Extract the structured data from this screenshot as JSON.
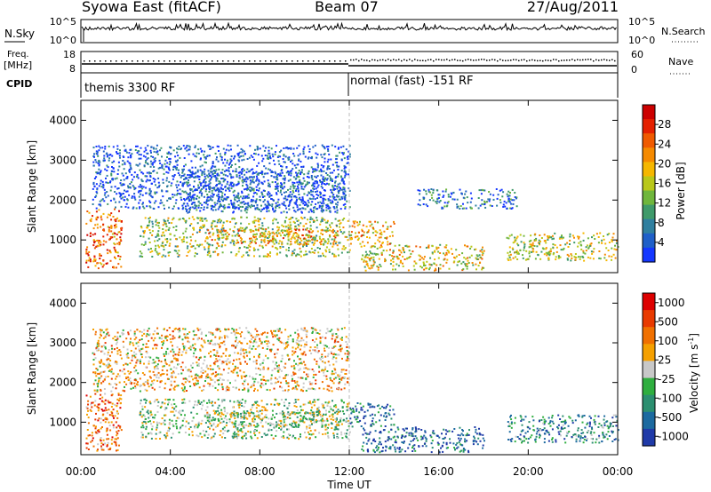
{
  "header": {
    "title": "Syowa East (fitACF)",
    "beam": "Beam 07",
    "date": "27/Aug/2011"
  },
  "summary_panels": {
    "nsky_label": "N.Sky",
    "nsky_ticks": [
      "10^5",
      "10^0"
    ],
    "nsearch_label": "N.Search",
    "nsearch_ticks": [
      "10^5",
      "10^0"
    ],
    "freq_label": "Freq.",
    "freq_unit": "[MHz]",
    "freq_ticks": [
      "18",
      "8"
    ],
    "nave_label": "Nave",
    "nave_ticks": [
      "60",
      "0"
    ],
    "cpid_label": "CPID",
    "cpid_segments": [
      {
        "label": "themis 3300 RF",
        "start_hour": 0,
        "end_hour": 12
      },
      {
        "label": "normal (fast) -151 RF",
        "start_hour": 12,
        "end_hour": 24
      }
    ]
  },
  "chart_data": [
    {
      "type": "heatmap",
      "name": "power",
      "ylabel": "Slant Range [km]",
      "yticks": [
        "1000",
        "2000",
        "3000",
        "4000"
      ],
      "xlim": [
        0,
        24
      ],
      "ylim": [
        180,
        4500
      ],
      "colorbar_label": "Power [dB]",
      "colorbar_ticks": [
        "4",
        "8",
        "12",
        "16",
        "20",
        "24",
        "28"
      ],
      "colorbar_colors": [
        "#1437ff",
        "#1f5fc8",
        "#2f7f9f",
        "#3f9a6a",
        "#6fb63c",
        "#b9c81a",
        "#f5b700",
        "#f58a00",
        "#ef5a00",
        "#e42000",
        "#cc0000"
      ],
      "scatter_regions": [
        {
          "t0": 0.2,
          "t1": 1.8,
          "r0": 300,
          "r1": 1800,
          "level": 0.75
        },
        {
          "t0": 2.6,
          "t1": 12.0,
          "r0": 600,
          "r1": 1600,
          "level": 0.45
        },
        {
          "t0": 5.5,
          "t1": 11.5,
          "r0": 900,
          "r1": 1300,
          "level": 0.65
        },
        {
          "t0": 4.5,
          "t1": 11.8,
          "r0": 1700,
          "r1": 2800,
          "level": 0.15
        },
        {
          "t0": 12.0,
          "t1": 14.0,
          "r0": 900,
          "r1": 1500,
          "level": 0.6
        },
        {
          "t0": 12.5,
          "t1": 18.0,
          "r0": 250,
          "r1": 900,
          "level": 0.55
        },
        {
          "t0": 15.0,
          "t1": 19.5,
          "r0": 1800,
          "r1": 2300,
          "level": 0.2
        },
        {
          "t0": 19.0,
          "t1": 24.0,
          "r0": 500,
          "r1": 1200,
          "level": 0.5
        },
        {
          "t0": 0.5,
          "t1": 12.0,
          "r0": 1800,
          "r1": 3400,
          "level": 0.1
        }
      ]
    },
    {
      "type": "heatmap",
      "name": "velocity",
      "ylabel": "Slant Range [km]",
      "xlabel": "Time UT",
      "xticks": [
        "00:00",
        "04:00",
        "08:00",
        "12:00",
        "16:00",
        "20:00",
        "00:00"
      ],
      "yticks": [
        "1000",
        "2000",
        "3000",
        "4000"
      ],
      "xlim": [
        0,
        24
      ],
      "ylim": [
        180,
        4500
      ],
      "colorbar_label": "Velocity [m s",
      "colorbar_unit_exp": "-1",
      "colorbar_ticks": [
        "1000",
        "500",
        "100",
        "25",
        "-25",
        "-100",
        "-500",
        "-1000"
      ],
      "colorbar_colors": [
        "#1f3aa8",
        "#1c6aa0",
        "#2c8f70",
        "#2fae3f",
        "#c8c8c8",
        "#f5a000",
        "#f07000",
        "#e83a00",
        "#dd0000"
      ],
      "scatter_regions": [
        {
          "t0": 0.2,
          "t1": 1.8,
          "r0": 300,
          "r1": 1800,
          "level": 0.75
        },
        {
          "t0": 2.6,
          "t1": 12.0,
          "r0": 600,
          "r1": 1600,
          "level": 0.45
        },
        {
          "t0": 5.5,
          "t1": 11.5,
          "r0": 900,
          "r1": 1300,
          "level": 0.45
        },
        {
          "t0": 12.0,
          "t1": 14.0,
          "r0": 900,
          "r1": 1500,
          "level": 0.2
        },
        {
          "t0": 12.5,
          "t1": 18.0,
          "r0": 250,
          "r1": 900,
          "level": 0.15
        },
        {
          "t0": 19.0,
          "t1": 24.0,
          "r0": 500,
          "r1": 1200,
          "level": 0.25
        },
        {
          "t0": 0.5,
          "t1": 12.0,
          "r0": 1800,
          "r1": 3400,
          "level": 0.6
        }
      ]
    }
  ]
}
